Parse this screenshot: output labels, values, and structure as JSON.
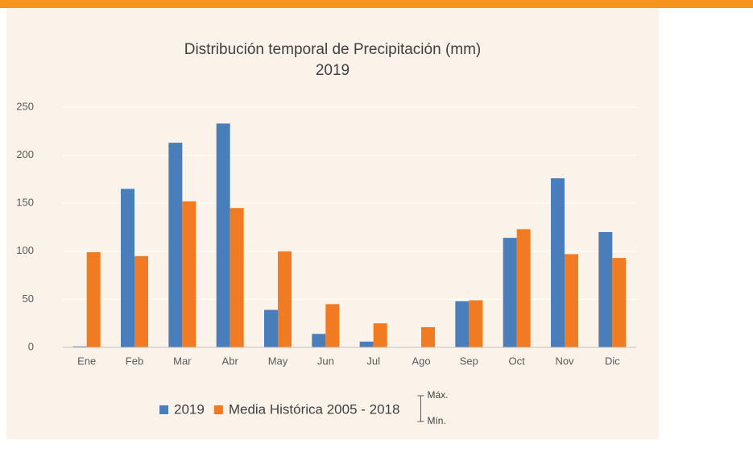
{
  "chart_data": {
    "type": "bar",
    "title": "Distribución temporal de Precipitación (mm)",
    "subtitle": "2019",
    "categories": [
      "Ene",
      "Feb",
      "Mar",
      "Abr",
      "May",
      "Jun",
      "Jul",
      "Ago",
      "Sep",
      "Oct",
      "Nov",
      "Dic"
    ],
    "series": [
      {
        "name": "2019",
        "color": "#4a7ebb",
        "values": [
          1,
          165,
          213,
          233,
          39,
          14,
          6,
          0,
          48,
          114,
          176,
          120
        ]
      },
      {
        "name": "Media Histórica 2005 - 2018",
        "color": "#f07b22",
        "values": [
          99,
          95,
          152,
          145,
          100,
          45,
          25,
          21,
          49,
          123,
          97,
          93
        ]
      }
    ],
    "legend_extra": {
      "max": "Máx.",
      "min": "Mín."
    },
    "ylim": [
      0,
      250
    ],
    "yticks": [
      0,
      50,
      100,
      150,
      200,
      250
    ],
    "grid": true
  }
}
